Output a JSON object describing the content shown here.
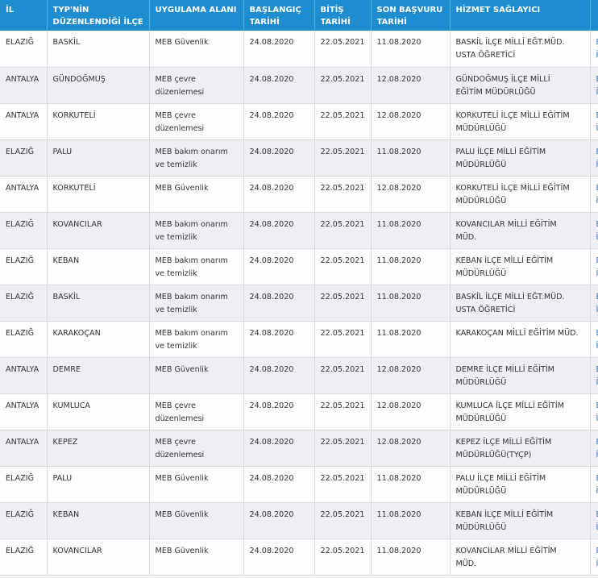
{
  "columns": [
    {
      "line1": "İL",
      "line2": ""
    },
    {
      "line1": "TYP'NİN",
      "line2": "DÜZENLENDİĞİ İLÇE"
    },
    {
      "line1": "UYGULAMA ALANI",
      "line2": ""
    },
    {
      "line1": "BAŞLANGIÇ",
      "line2": "TARİHİ"
    },
    {
      "line1": "BİTİŞ",
      "line2": "TARİHİ"
    },
    {
      "line1": "SON BAŞVURU",
      "line2": "TARİHİ"
    },
    {
      "line1": "HİZMET SAĞLAYICI",
      "line2": ""
    },
    {
      "line1": "",
      "line2": ""
    }
  ],
  "rows": [
    {
      "il": "ELAZIĞ",
      "ilce": "BASKİL",
      "alan1": "MEB Güvenlik",
      "alan2": "",
      "baslangic": "24.08.2020",
      "bitis": "22.05.2021",
      "son": "11.08.2020",
      "saglayici1": "BASKİL İLÇE MİLLİ EĞT.MÜD.",
      "saglayici2": "USTA ÖĞRETİCİ",
      "link1": "B",
      "link2": "İ"
    },
    {
      "il": "ANTALYA",
      "ilce": "GÜNDOĞMUŞ",
      "alan1": "MEB çevre",
      "alan2": "düzenlemesi",
      "baslangic": "24.08.2020",
      "bitis": "22.05.2021",
      "son": "12.08.2020",
      "saglayici1": "GÜNDOĞMUŞ İLÇE MİLLİ",
      "saglayici2": "EĞİTİM MÜDÜRLÜĞÜ",
      "link1": "B",
      "link2": "İ"
    },
    {
      "il": "ANTALYA",
      "ilce": "KORKUTELİ",
      "alan1": "MEB çevre",
      "alan2": "düzenlemesi",
      "baslangic": "24.08.2020",
      "bitis": "22.05.2021",
      "son": "12.08.2020",
      "saglayici1": "KORKUTELİ İLÇE MİLLİ EĞİTİM",
      "saglayici2": "MÜDÜRLÜĞÜ",
      "link1": "B",
      "link2": "İ"
    },
    {
      "il": "ELAZIĞ",
      "ilce": "PALU",
      "alan1": "MEB bakım onarım",
      "alan2": "ve temizlik",
      "baslangic": "24.08.2020",
      "bitis": "22.05.2021",
      "son": "11.08.2020",
      "saglayici1": "PALU İLÇE MİLLİ EĞİTİM",
      "saglayici2": "MÜDÜRLÜĞÜ",
      "link1": "B",
      "link2": "İ"
    },
    {
      "il": "ANTALYA",
      "ilce": "KORKUTELİ",
      "alan1": "MEB Güvenlik",
      "alan2": "",
      "baslangic": "24.08.2020",
      "bitis": "22.05.2021",
      "son": "12.08.2020",
      "saglayici1": "KORKUTELİ İLÇE MİLLİ EĞİTİM",
      "saglayici2": "MÜDÜRLÜĞÜ",
      "link1": "B",
      "link2": "İ"
    },
    {
      "il": "ELAZIĞ",
      "ilce": "KOVANCILAR",
      "alan1": "MEB bakım onarım",
      "alan2": "ve temizlik",
      "baslangic": "24.08.2020",
      "bitis": "22.05.2021",
      "son": "11.08.2020",
      "saglayici1": "KOVANCILAR MİLLİ EĞİTİM",
      "saglayici2": "MÜD.",
      "link1": "B",
      "link2": "İ"
    },
    {
      "il": "ELAZIĞ",
      "ilce": "KEBAN",
      "alan1": "MEB bakım onarım",
      "alan2": "ve temizlik",
      "baslangic": "24.08.2020",
      "bitis": "22.05.2021",
      "son": "11.08.2020",
      "saglayici1": "KEBAN İLÇE MİLLİ EĞİTİM",
      "saglayici2": "MÜDÜRLÜĞÜ",
      "link1": "B",
      "link2": "İ"
    },
    {
      "il": "ELAZIĞ",
      "ilce": "BASKİL",
      "alan1": "MEB bakım onarım",
      "alan2": "ve temizlik",
      "baslangic": "24.08.2020",
      "bitis": "22.05.2021",
      "son": "11.08.2020",
      "saglayici1": "BASKİL İLÇE MİLLİ EĞT.MÜD.",
      "saglayici2": "USTA ÖĞRETİCİ",
      "link1": "B",
      "link2": "İ"
    },
    {
      "il": "ELAZIĞ",
      "ilce": "KARAKOÇAN",
      "alan1": "MEB bakım onarım",
      "alan2": "ve temizlik",
      "baslangic": "24.08.2020",
      "bitis": "22.05.2021",
      "son": "11.08.2020",
      "saglayici1": "KARAKOÇAN MİLLİ EĞİTİM MÜD.",
      "saglayici2": "",
      "link1": "B",
      "link2": "İ"
    },
    {
      "il": "ANTALYA",
      "ilce": "DEMRE",
      "alan1": "MEB Güvenlik",
      "alan2": "",
      "baslangic": "24.08.2020",
      "bitis": "22.05.2021",
      "son": "12.08.2020",
      "saglayici1": "DEMRE İLÇE MİLLİ EĞİTİM",
      "saglayici2": "MÜDÜRLÜĞÜ",
      "link1": "B",
      "link2": "İ"
    },
    {
      "il": "ANTALYA",
      "ilce": "KUMLUCA",
      "alan1": "MEB çevre",
      "alan2": "düzenlemesi",
      "baslangic": "24.08.2020",
      "bitis": "22.05.2021",
      "son": "12.08.2020",
      "saglayici1": "KUMLUCA İLÇE MİLLİ EĞİTİM",
      "saglayici2": "MÜDÜRLÜĞÜ",
      "link1": "B",
      "link2": "İ"
    },
    {
      "il": "ANTALYA",
      "ilce": "KEPEZ",
      "alan1": "MEB çevre",
      "alan2": "düzenlemesi",
      "baslangic": "24.08.2020",
      "bitis": "22.05.2021",
      "son": "12.08.2020",
      "saglayici1": "KEPEZ İLÇE MİLLİ EĞİTİM",
      "saglayici2": "MÜDÜRLÜĞÜ(TYÇP)",
      "link1": "B",
      "link2": "İ"
    },
    {
      "il": "ELAZIĞ",
      "ilce": "PALU",
      "alan1": "MEB Güvenlik",
      "alan2": "",
      "baslangic": "24.08.2020",
      "bitis": "22.05.2021",
      "son": "11.08.2020",
      "saglayici1": "PALU İLÇE MİLLİ EĞİTİM",
      "saglayici2": "MÜDÜRLÜĞÜ",
      "link1": "B",
      "link2": "İ"
    },
    {
      "il": "ELAZIĞ",
      "ilce": "KEBAN",
      "alan1": "MEB Güvenlik",
      "alan2": "",
      "baslangic": "24.08.2020",
      "bitis": "22.05.2021",
      "son": "11.08.2020",
      "saglayici1": "KEBAN İLÇE MİLLİ EĞİTİM",
      "saglayici2": "MÜDÜRLÜĞÜ",
      "link1": "B",
      "link2": "İ"
    },
    {
      "il": "ELAZIĞ",
      "ilce": "KOVANCILAR",
      "alan1": "MEB Güvenlik",
      "alan2": "",
      "baslangic": "24.08.2020",
      "bitis": "22.05.2021",
      "son": "11.08.2020",
      "saglayici1": "KOVANCILAR MİLLİ EĞİTİM",
      "saglayici2": "MÜD.",
      "link1": "B",
      "link2": "İ"
    }
  ],
  "colors": {
    "header_bg": "#1e8dd0",
    "header_text": "#ffffff",
    "link": "#1e73c2",
    "row_border": "#d7dbe0"
  }
}
